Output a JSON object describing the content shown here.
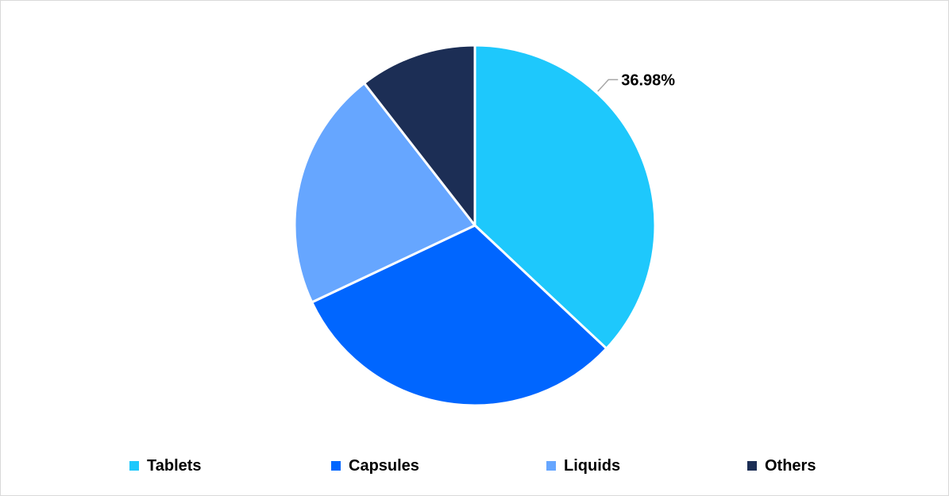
{
  "chart_data": {
    "type": "pie",
    "categories": [
      "Tablets",
      "Capsules",
      "Liquids",
      "Others"
    ],
    "values": [
      36.98,
      31.0,
      21.5,
      10.52
    ],
    "colors": [
      "#1ec8fc",
      "#0066ff",
      "#66a6ff",
      "#1c2e55"
    ],
    "data_labels": [
      {
        "category": "Tablets",
        "text": "36.98%"
      }
    ],
    "legend": {
      "placement": "bottom",
      "entries": [
        "Tablets",
        "Capsules",
        "Liquids",
        "Others"
      ]
    },
    "start_angle": "12 o'clock",
    "direction": "clockwise",
    "slice_border_color": "#ffffff"
  }
}
